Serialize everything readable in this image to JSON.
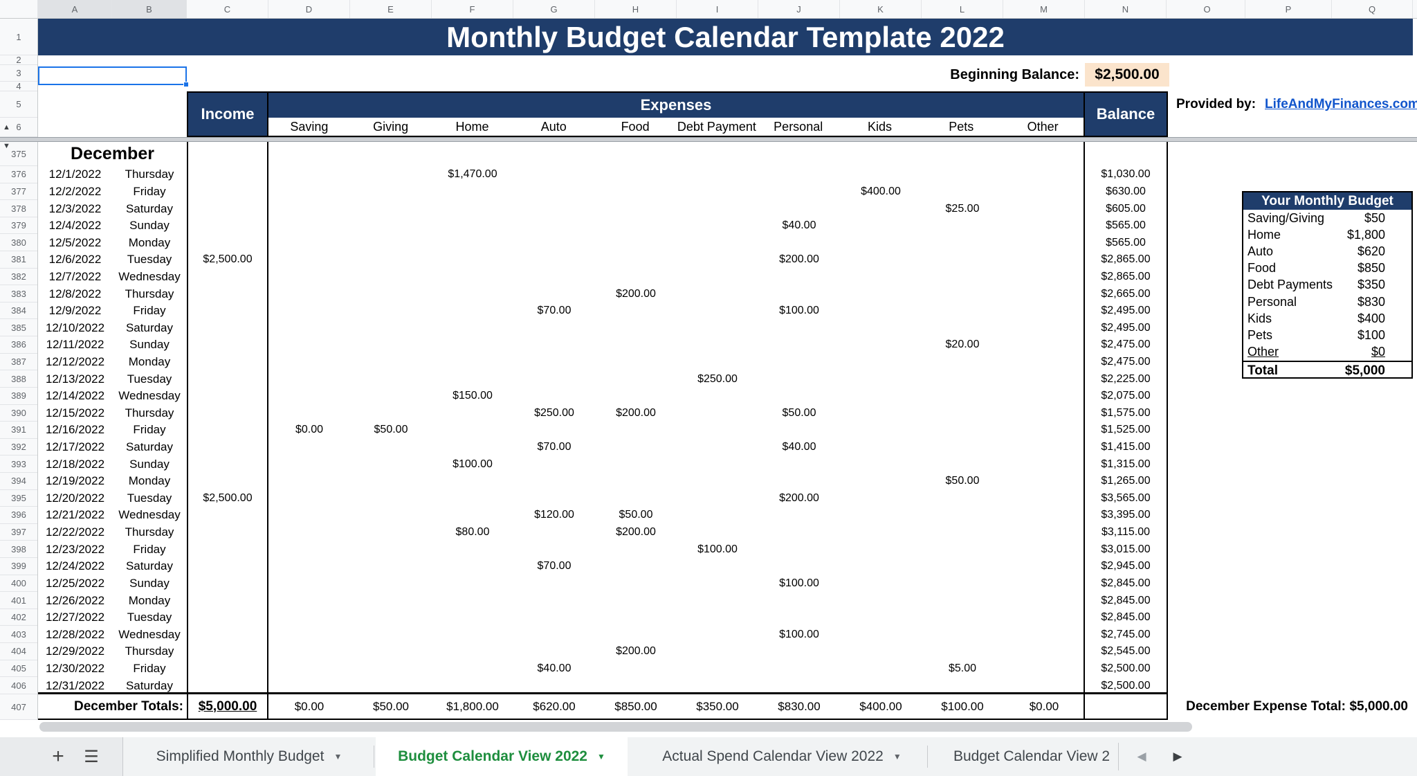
{
  "title": "Monthly Budget Calendar Template 2022",
  "column_letters": [
    "A",
    "B",
    "C",
    "D",
    "E",
    "F",
    "G",
    "H",
    "I",
    "J",
    "K",
    "L",
    "M",
    "N",
    "O",
    "P",
    "Q"
  ],
  "top_row_numbers": [
    "1",
    "2",
    "3",
    "4",
    "5",
    "6"
  ],
  "beginning_balance": {
    "label": "Beginning Balance:",
    "value": "$2,500.00"
  },
  "provided_by": {
    "label": "Provided by:",
    "link_text": "LifeAndMyFinances.com"
  },
  "headers": {
    "income": "Income",
    "expenses": "Expenses",
    "balance": "Balance",
    "categories": [
      "Saving",
      "Giving",
      "Home",
      "Auto",
      "Food",
      "Debt Payment",
      "Personal",
      "Kids",
      "Pets",
      "Other"
    ]
  },
  "month_label": "December",
  "daily_rows": [
    {
      "n": "376",
      "date": "12/1/2022",
      "day": "Thursday",
      "amounts": {
        "hom": "$1,470.00"
      },
      "balance": "$1,030.00"
    },
    {
      "n": "377",
      "date": "12/2/2022",
      "day": "Friday",
      "amounts": {
        "kid": "$400.00"
      },
      "balance": "$630.00"
    },
    {
      "n": "378",
      "date": "12/3/2022",
      "day": "Saturday",
      "amounts": {
        "pet": "$25.00"
      },
      "balance": "$605.00"
    },
    {
      "n": "379",
      "date": "12/4/2022",
      "day": "Sunday",
      "amounts": {
        "per": "$40.00"
      },
      "balance": "$565.00"
    },
    {
      "n": "380",
      "date": "12/5/2022",
      "day": "Monday",
      "amounts": {},
      "balance": "$565.00"
    },
    {
      "n": "381",
      "date": "12/6/2022",
      "day": "Tuesday",
      "amounts": {
        "inc": "$2,500.00",
        "per": "$200.00"
      },
      "balance": "$2,865.00"
    },
    {
      "n": "382",
      "date": "12/7/2022",
      "day": "Wednesday",
      "amounts": {},
      "balance": "$2,865.00"
    },
    {
      "n": "383",
      "date": "12/8/2022",
      "day": "Thursday",
      "amounts": {
        "foo": "$200.00"
      },
      "balance": "$2,665.00"
    },
    {
      "n": "384",
      "date": "12/9/2022",
      "day": "Friday",
      "amounts": {
        "aut": "$70.00",
        "per": "$100.00"
      },
      "balance": "$2,495.00"
    },
    {
      "n": "385",
      "date": "12/10/2022",
      "day": "Saturday",
      "amounts": {},
      "balance": "$2,495.00"
    },
    {
      "n": "386",
      "date": "12/11/2022",
      "day": "Sunday",
      "amounts": {
        "pet": "$20.00"
      },
      "balance": "$2,475.00"
    },
    {
      "n": "387",
      "date": "12/12/2022",
      "day": "Monday",
      "amounts": {},
      "balance": "$2,475.00"
    },
    {
      "n": "388",
      "date": "12/13/2022",
      "day": "Tuesday",
      "amounts": {
        "deb": "$250.00"
      },
      "balance": "$2,225.00"
    },
    {
      "n": "389",
      "date": "12/14/2022",
      "day": "Wednesday",
      "amounts": {
        "hom": "$150.00"
      },
      "balance": "$2,075.00"
    },
    {
      "n": "390",
      "date": "12/15/2022",
      "day": "Thursday",
      "amounts": {
        "aut": "$250.00",
        "foo": "$200.00",
        "per": "$50.00"
      },
      "balance": "$1,575.00"
    },
    {
      "n": "391",
      "date": "12/16/2022",
      "day": "Friday",
      "amounts": {
        "sav": "$0.00",
        "giv": "$50.00"
      },
      "balance": "$1,525.00"
    },
    {
      "n": "392",
      "date": "12/17/2022",
      "day": "Saturday",
      "amounts": {
        "aut": "$70.00",
        "per": "$40.00"
      },
      "balance": "$1,415.00"
    },
    {
      "n": "393",
      "date": "12/18/2022",
      "day": "Sunday",
      "amounts": {
        "hom": "$100.00"
      },
      "balance": "$1,315.00"
    },
    {
      "n": "394",
      "date": "12/19/2022",
      "day": "Monday",
      "amounts": {
        "pet": "$50.00"
      },
      "balance": "$1,265.00"
    },
    {
      "n": "395",
      "date": "12/20/2022",
      "day": "Tuesday",
      "amounts": {
        "inc": "$2,500.00",
        "per": "$200.00"
      },
      "balance": "$3,565.00"
    },
    {
      "n": "396",
      "date": "12/21/2022",
      "day": "Wednesday",
      "amounts": {
        "aut": "$120.00",
        "foo": "$50.00"
      },
      "balance": "$3,395.00"
    },
    {
      "n": "397",
      "date": "12/22/2022",
      "day": "Thursday",
      "amounts": {
        "hom": "$80.00",
        "foo": "$200.00"
      },
      "balance": "$3,115.00"
    },
    {
      "n": "398",
      "date": "12/23/2022",
      "day": "Friday",
      "amounts": {
        "deb": "$100.00"
      },
      "balance": "$3,015.00"
    },
    {
      "n": "399",
      "date": "12/24/2022",
      "day": "Saturday",
      "amounts": {
        "aut": "$70.00"
      },
      "balance": "$2,945.00"
    },
    {
      "n": "400",
      "date": "12/25/2022",
      "day": "Sunday",
      "amounts": {
        "per": "$100.00"
      },
      "balance": "$2,845.00"
    },
    {
      "n": "401",
      "date": "12/26/2022",
      "day": "Monday",
      "amounts": {},
      "balance": "$2,845.00"
    },
    {
      "n": "402",
      "date": "12/27/2022",
      "day": "Tuesday",
      "amounts": {},
      "balance": "$2,845.00"
    },
    {
      "n": "403",
      "date": "12/28/2022",
      "day": "Wednesday",
      "amounts": {
        "per": "$100.00"
      },
      "balance": "$2,745.00"
    },
    {
      "n": "404",
      "date": "12/29/2022",
      "day": "Thursday",
      "amounts": {
        "foo": "$200.00"
      },
      "balance": "$2,545.00"
    },
    {
      "n": "405",
      "date": "12/30/2022",
      "day": "Friday",
      "amounts": {
        "aut": "$40.00",
        "pet": "$5.00"
      },
      "balance": "$2,500.00"
    },
    {
      "n": "406",
      "date": "12/31/2022",
      "day": "Saturday",
      "amounts": {},
      "balance": "$2,500.00"
    }
  ],
  "totals_row": {
    "row_number": "407",
    "label": "December Totals:",
    "income_total": "$5,000.00",
    "category_totals": [
      "$0.00",
      "$50.00",
      "$1,800.00",
      "$620.00",
      "$850.00",
      "$350.00",
      "$830.00",
      "$400.00",
      "$100.00",
      "$0.00"
    ]
  },
  "expense_total": {
    "label": "December Expense Total:",
    "value": "$5,000.00"
  },
  "budget_panel": {
    "title": "Your Monthly Budget",
    "rows": [
      {
        "label": "Saving/Giving",
        "value": "$50"
      },
      {
        "label": "Home",
        "value": "$1,800"
      },
      {
        "label": "Auto",
        "value": "$620"
      },
      {
        "label": "Food",
        "value": "$850"
      },
      {
        "label": "Debt Payments",
        "value": "$350"
      },
      {
        "label": "Personal",
        "value": "$830"
      },
      {
        "label": "Kids",
        "value": "$400"
      },
      {
        "label": "Pets",
        "value": "$100"
      },
      {
        "label": "Other",
        "value": "$0",
        "underline": true
      }
    ],
    "total_label": "Total",
    "total_value": "$5,000"
  },
  "sheet_tabs": [
    {
      "label": "Simplified Monthly Budget",
      "active": false
    },
    {
      "label": "Budget Calendar View 2022",
      "active": true
    },
    {
      "label": "Actual Spend Calendar View 2022",
      "active": false
    },
    {
      "label": "Budget Calendar View 2",
      "active": false,
      "truncated": true
    }
  ],
  "colors": {
    "navy": "#1F3D6B",
    "peach": "#FBE4CC",
    "link_blue": "#1155CC",
    "active_tab_green": "#1E8E3E",
    "selection_blue": "#1A73E8"
  }
}
